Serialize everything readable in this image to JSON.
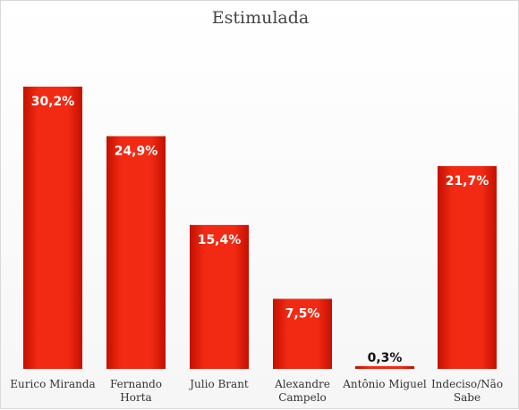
{
  "chart_data": {
    "type": "bar",
    "title": "Estimulada",
    "categories": [
      [
        "Eurico Miranda"
      ],
      [
        "Fernando",
        "Horta"
      ],
      [
        "Julio Brant"
      ],
      [
        "Alexandre",
        "Campelo"
      ],
      [
        "Antônio Miguel"
      ],
      [
        "Indeciso/Não",
        "Sabe"
      ]
    ],
    "values": [
      30.2,
      24.9,
      15.4,
      7.5,
      0.3,
      21.7
    ],
    "value_labels": [
      "30,2%",
      "24,9%",
      "15,4%",
      "7,5%",
      "0,3%",
      "21,7%"
    ],
    "ylim": [
      0,
      30.2
    ],
    "grid": false,
    "bar_color": "#e81c0c",
    "value_label_color": "#ffffff",
    "small_value_label_color": "#111111"
  }
}
